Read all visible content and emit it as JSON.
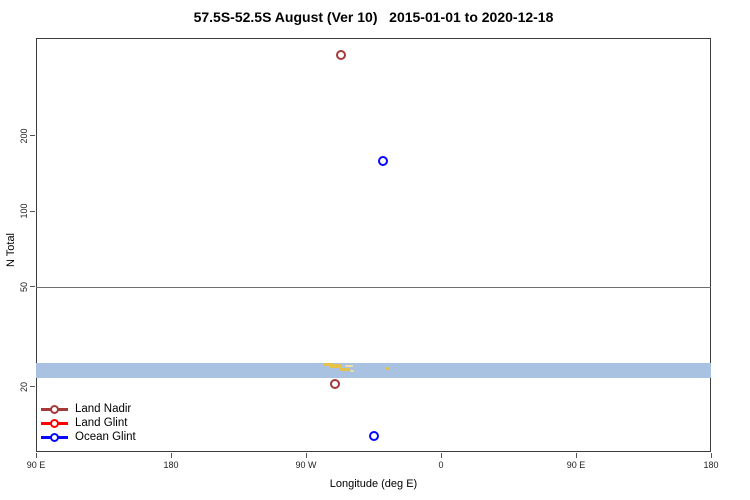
{
  "title": "57.5S-52.5S August (Ver 10)   2015-01-01 to 2020-12-18",
  "chart_data": {
    "type": "scatter",
    "title": "57.5S-52.5S August (Ver 10)   2015-01-01 to 2020-12-18",
    "xlabel": "Longitude (deg E)",
    "ylabel": "N Total",
    "x_axis": {
      "scale": "linear",
      "domain_degE": [
        90,
        540
      ],
      "ticks": [
        {
          "value": 90,
          "label": "90 E"
        },
        {
          "value": 180,
          "label": "180"
        },
        {
          "value": 270,
          "label": "90 W"
        },
        {
          "value": 360,
          "label": "0"
        },
        {
          "value": 450,
          "label": "90 E"
        },
        {
          "value": 540,
          "label": "180"
        }
      ]
    },
    "y_axis": {
      "scale": "log10",
      "domain": [
        11,
        490
      ],
      "ticks": [
        {
          "value": 20,
          "label": "20"
        },
        {
          "value": 50,
          "label": "50"
        },
        {
          "value": 100,
          "label": "100"
        },
        {
          "value": 200,
          "label": "200"
        }
      ]
    },
    "reference_line": {
      "y_value": 50,
      "color": "#6e6e6e"
    },
    "map_strip": {
      "description": "latitude-band coastline strip: ocean with land specks",
      "value_range": [
        21.7,
        24.9
      ],
      "ocean_color": "#a9c2e1",
      "land_color": "#e7c24b",
      "land_color_light": "#f2dfa0",
      "land_specks": [
        {
          "lon": 282.0,
          "dlon": 6.0,
          "dy": 0,
          "h": 3,
          "light": false
        },
        {
          "lon": 285.5,
          "dlon": 8.5,
          "dy": 1,
          "h": 4,
          "light": false
        },
        {
          "lon": 292.5,
          "dlon": 6.5,
          "dy": 5,
          "h": 3,
          "light": false
        },
        {
          "lon": 296.0,
          "dlon": 5.0,
          "dy": 2,
          "h": 2,
          "light": true
        },
        {
          "lon": 299.0,
          "dlon": 3.0,
          "dy": 7,
          "h": 2,
          "light": true
        },
        {
          "lon": 323.5,
          "dlon": 2.0,
          "dy": 4,
          "h": 3,
          "light": false
        }
      ]
    },
    "series": [
      {
        "name": "Land Nadir",
        "color": "#a33a38",
        "points": [
          {
            "lon": 293,
            "n": 420
          },
          {
            "lon": 289,
            "n": 20.5
          }
        ]
      },
      {
        "name": "Land Glint",
        "color": "#ff0000",
        "points": []
      },
      {
        "name": "Ocean Glint",
        "color": "#0808fe",
        "points": [
          {
            "lon": 321,
            "n": 158
          },
          {
            "lon": 315,
            "n": 12.7
          }
        ]
      }
    ],
    "legend": {
      "position": "bottom-left",
      "items": [
        {
          "label": "Land Nadir",
          "color": "#a33a38"
        },
        {
          "label": "Land Glint",
          "color": "#ff0000"
        },
        {
          "label": "Ocean Glint",
          "color": "#0808fe"
        }
      ]
    }
  }
}
